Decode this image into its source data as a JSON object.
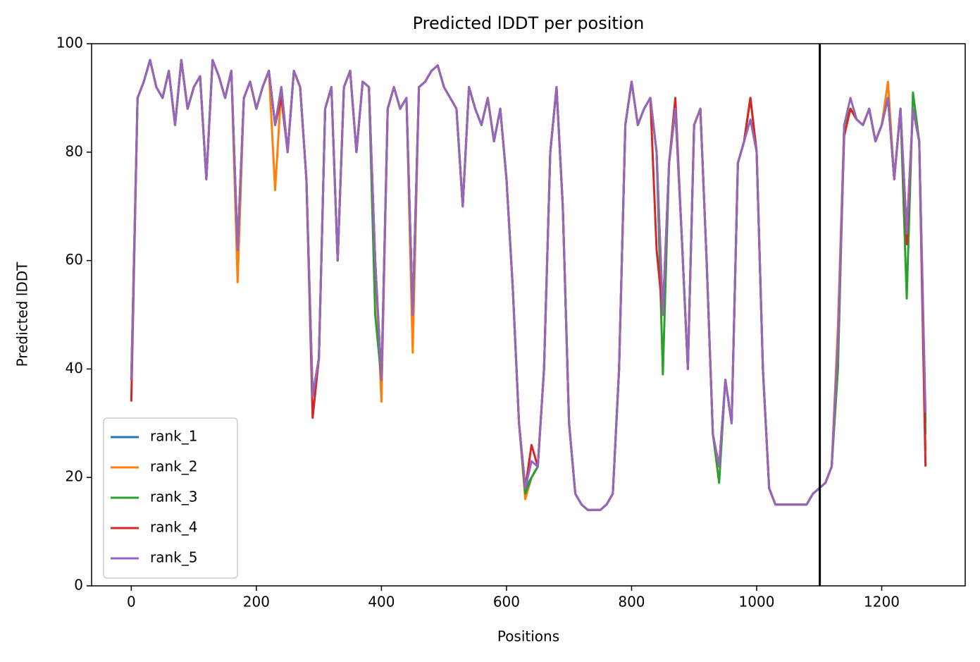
{
  "chart_data": {
    "type": "line",
    "title": "Predicted lDDT per position",
    "xlabel": "Positions",
    "ylabel": "Predicted lDDT",
    "xlim": [
      -63.5,
      1333.5
    ],
    "ylim": [
      0,
      100
    ],
    "xticks": [
      0,
      200,
      400,
      600,
      800,
      1000,
      1200
    ],
    "yticks": [
      0,
      20,
      40,
      60,
      80,
      100
    ],
    "legend": "lower left",
    "vline": 1101,
    "vline_color": "#000000",
    "x": [
      0,
      10,
      20,
      30,
      40,
      50,
      60,
      70,
      80,
      90,
      100,
      110,
      120,
      130,
      140,
      150,
      160,
      170,
      180,
      190,
      200,
      210,
      220,
      230,
      240,
      250,
      260,
      270,
      280,
      290,
      300,
      310,
      320,
      330,
      340,
      350,
      360,
      370,
      380,
      390,
      400,
      410,
      420,
      430,
      440,
      450,
      460,
      470,
      480,
      490,
      500,
      510,
      520,
      530,
      540,
      550,
      560,
      570,
      580,
      590,
      600,
      610,
      620,
      630,
      640,
      650,
      660,
      670,
      680,
      690,
      700,
      710,
      720,
      730,
      740,
      750,
      760,
      770,
      780,
      790,
      800,
      810,
      820,
      830,
      840,
      850,
      860,
      870,
      880,
      890,
      900,
      910,
      920,
      930,
      940,
      950,
      960,
      970,
      980,
      990,
      1000,
      1010,
      1020,
      1030,
      1040,
      1050,
      1060,
      1070,
      1080,
      1090,
      1100,
      1110,
      1120,
      1130,
      1140,
      1150,
      1160,
      1170,
      1180,
      1190,
      1200,
      1210,
      1220,
      1230,
      1240,
      1250,
      1260,
      1270
    ],
    "series": [
      {
        "name": "rank_1",
        "color": "#1f77b4",
        "values": [
          38,
          90,
          93,
          97,
          92,
          90,
          95,
          85,
          97,
          88,
          92,
          94,
          75,
          97,
          94,
          90,
          95,
          62,
          90,
          93,
          88,
          92,
          95,
          85,
          92,
          80,
          95,
          92,
          75,
          35,
          42,
          88,
          92,
          60,
          92,
          95,
          80,
          93,
          92,
          60,
          38,
          88,
          92,
          88,
          90,
          50,
          92,
          93,
          95,
          96,
          92,
          90,
          88,
          70,
          92,
          88,
          85,
          90,
          82,
          88,
          75,
          55,
          30,
          18,
          20,
          22,
          40,
          80,
          92,
          70,
          30,
          17,
          15,
          14,
          14,
          14,
          15,
          17,
          40,
          85,
          93,
          85,
          88,
          90,
          80,
          50,
          78,
          88,
          65,
          40,
          85,
          88,
          60,
          28,
          22,
          38,
          30,
          78,
          82,
          90,
          80,
          40,
          18,
          15,
          15,
          15,
          15,
          15,
          15,
          17,
          18,
          19,
          22,
          45,
          85,
          88,
          86,
          85,
          88,
          82,
          85,
          90,
          75,
          88,
          65,
          88,
          82,
          30
        ]
      },
      {
        "name": "rank_2",
        "color": "#ff7f0e",
        "values": [
          38,
          90,
          93,
          97,
          92,
          90,
          95,
          85,
          97,
          88,
          92,
          94,
          75,
          97,
          94,
          90,
          95,
          56,
          90,
          93,
          88,
          92,
          95,
          73,
          92,
          80,
          95,
          92,
          75,
          35,
          42,
          88,
          92,
          60,
          92,
          95,
          80,
          93,
          92,
          60,
          34,
          88,
          92,
          88,
          90,
          43,
          92,
          93,
          95,
          96,
          92,
          90,
          88,
          70,
          92,
          88,
          85,
          90,
          82,
          88,
          75,
          55,
          30,
          16,
          20,
          22,
          40,
          80,
          92,
          70,
          30,
          17,
          15,
          14,
          14,
          14,
          15,
          17,
          40,
          85,
          93,
          85,
          88,
          90,
          80,
          50,
          78,
          88,
          65,
          40,
          85,
          88,
          60,
          28,
          22,
          38,
          30,
          78,
          82,
          90,
          80,
          40,
          18,
          15,
          15,
          15,
          15,
          15,
          15,
          17,
          18,
          19,
          22,
          48,
          85,
          88,
          86,
          85,
          88,
          82,
          85,
          93,
          75,
          88,
          65,
          88,
          82,
          25
        ]
      },
      {
        "name": "rank_3",
        "color": "#2ca02c",
        "values": [
          38,
          90,
          93,
          97,
          92,
          90,
          95,
          85,
          97,
          88,
          92,
          94,
          75,
          97,
          94,
          90,
          95,
          62,
          90,
          93,
          88,
          92,
          95,
          85,
          92,
          80,
          95,
          92,
          75,
          35,
          42,
          88,
          92,
          60,
          92,
          95,
          80,
          93,
          92,
          50,
          38,
          88,
          92,
          88,
          90,
          50,
          92,
          93,
          95,
          96,
          92,
          90,
          88,
          70,
          92,
          88,
          85,
          90,
          82,
          88,
          75,
          55,
          30,
          17,
          20,
          22,
          40,
          80,
          92,
          70,
          30,
          17,
          15,
          14,
          14,
          14,
          15,
          17,
          40,
          85,
          93,
          85,
          88,
          90,
          80,
          39,
          78,
          88,
          65,
          40,
          85,
          88,
          60,
          28,
          19,
          38,
          30,
          78,
          82,
          90,
          80,
          40,
          18,
          15,
          15,
          15,
          15,
          15,
          15,
          17,
          18,
          19,
          22,
          40,
          85,
          88,
          86,
          85,
          88,
          82,
          85,
          90,
          75,
          88,
          53,
          91,
          82,
          28
        ]
      },
      {
        "name": "rank_4",
        "color": "#d62728",
        "values": [
          34,
          90,
          93,
          97,
          92,
          90,
          95,
          85,
          97,
          88,
          92,
          94,
          75,
          97,
          94,
          90,
          95,
          62,
          90,
          93,
          88,
          92,
          95,
          85,
          90,
          80,
          95,
          92,
          75,
          31,
          42,
          88,
          92,
          60,
          92,
          95,
          80,
          93,
          92,
          60,
          38,
          88,
          92,
          88,
          90,
          50,
          92,
          93,
          95,
          96,
          92,
          90,
          88,
          70,
          92,
          88,
          85,
          90,
          82,
          88,
          75,
          55,
          30,
          18,
          26,
          22,
          40,
          80,
          92,
          70,
          30,
          17,
          15,
          14,
          14,
          14,
          15,
          17,
          40,
          85,
          93,
          85,
          88,
          90,
          62,
          50,
          78,
          90,
          65,
          40,
          85,
          88,
          60,
          28,
          22,
          38,
          30,
          78,
          82,
          90,
          80,
          40,
          18,
          15,
          15,
          15,
          15,
          15,
          15,
          17,
          18,
          19,
          22,
          45,
          83,
          88,
          86,
          85,
          88,
          82,
          85,
          90,
          75,
          88,
          63,
          88,
          82,
          22
        ]
      },
      {
        "name": "rank_5",
        "color": "#9467bd",
        "values": [
          38,
          90,
          93,
          97,
          92,
          90,
          95,
          85,
          97,
          88,
          92,
          94,
          75,
          97,
          94,
          90,
          95,
          62,
          90,
          93,
          88,
          92,
          95,
          85,
          92,
          80,
          95,
          92,
          75,
          35,
          42,
          88,
          92,
          60,
          92,
          95,
          80,
          93,
          92,
          60,
          38,
          88,
          92,
          88,
          90,
          50,
          92,
          93,
          95,
          96,
          92,
          90,
          88,
          70,
          92,
          88,
          85,
          90,
          82,
          88,
          75,
          55,
          30,
          18,
          23,
          22,
          40,
          80,
          92,
          70,
          30,
          17,
          15,
          14,
          14,
          14,
          15,
          17,
          40,
          85,
          93,
          85,
          88,
          90,
          80,
          50,
          78,
          88,
          65,
          40,
          85,
          88,
          60,
          28,
          22,
          38,
          30,
          78,
          82,
          86,
          80,
          40,
          18,
          15,
          15,
          15,
          15,
          15,
          15,
          17,
          18,
          19,
          22,
          45,
          85,
          90,
          86,
          85,
          88,
          82,
          85,
          90,
          75,
          88,
          65,
          88,
          82,
          32
        ]
      }
    ]
  }
}
